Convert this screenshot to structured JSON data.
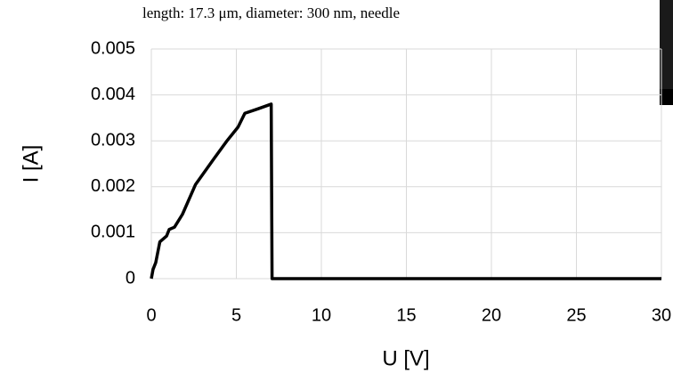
{
  "chart_data": {
    "type": "line",
    "title": "length: 17.3 μm, diameter: 300 nm, needle",
    "x_label": "U [V]",
    "y_label": "I [A]",
    "series": [
      {
        "color": "#000000",
        "x": [
          0,
          0.1,
          0.26,
          0.5,
          0.9,
          1.05,
          1.36,
          1.83,
          2.6,
          3.66,
          4.45,
          5.1,
          5.5,
          6.3,
          7.05,
          7.1,
          30
        ],
        "values": [
          0,
          0.0002,
          0.00035,
          0.0008,
          0.00093,
          0.00107,
          0.00112,
          0.0014,
          0.00205,
          0.0026,
          0.003,
          0.0033,
          0.0036,
          0.0037,
          0.0038,
          0,
          0
        ]
      }
    ],
    "xlim": [
      0,
      30
    ],
    "xticks": [
      0,
      5,
      10,
      15,
      20,
      25,
      30
    ],
    "ylim": [
      0,
      0.005
    ],
    "yticks": [
      0,
      0.001,
      0.002,
      0.003,
      0.004,
      0.005
    ],
    "grid": true
  }
}
